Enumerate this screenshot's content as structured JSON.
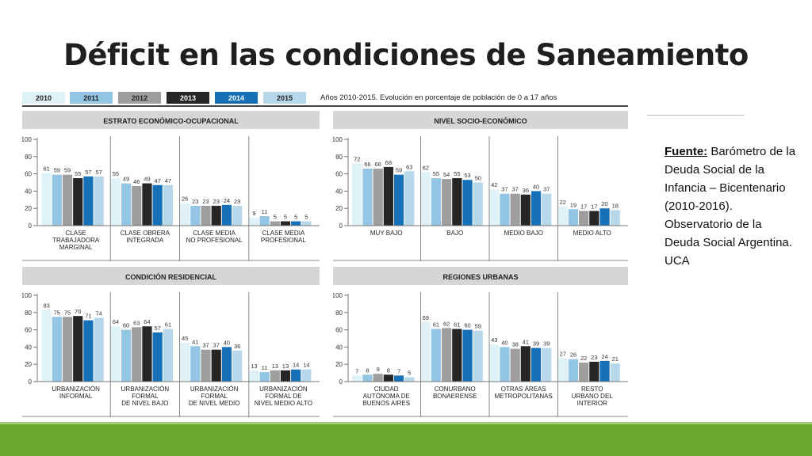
{
  "slide": {
    "title": "Déficit en las condiciones de Saneamiento",
    "source_label": "Fuente:",
    "source_text": " Barómetro de la Deuda Social de la Infancia – Bicentenario (2010-2016). Observatorio de la Deuda Social Argentina. UCA"
  },
  "legend": {
    "years": [
      "2010",
      "2011",
      "2012",
      "2013",
      "2014",
      "2015"
    ],
    "colors": [
      "#dff2f7",
      "#93c6e4",
      "#9e9e9e",
      "#262626",
      "#1670b8",
      "#b7d8ea"
    ],
    "text_colors": [
      "#222222",
      "#222222",
      "#222222",
      "#ffffff",
      "#ffffff",
      "#222222"
    ],
    "description": "Años 2010-2015. Evolución en porcentaje de población de 0 a 17 años"
  },
  "chart_data": [
    {
      "type": "bar",
      "title": "ESTRATO ECONÓMICO-OCUPACIONAL",
      "ylim": [
        0,
        100
      ],
      "yticks": [
        "0",
        "20",
        "40",
        "60",
        "80",
        "100"
      ],
      "categories": [
        [
          "CLASE",
          "TRABAJADORA",
          "MARGINAL"
        ],
        [
          "CLASE OBRERA",
          "INTEGRADA"
        ],
        [
          "CLASE MEDIA",
          "NO PROFESIONAL"
        ],
        [
          "CLASE MEDIA",
          "PROFESIONAL"
        ]
      ],
      "series": [
        {
          "name": "2010",
          "values": [
            61,
            55,
            26,
            9
          ]
        },
        {
          "name": "2011",
          "values": [
            59,
            49,
            23,
            11
          ]
        },
        {
          "name": "2012",
          "values": [
            59,
            46,
            23,
            5
          ]
        },
        {
          "name": "2013",
          "values": [
            55,
            49,
            23,
            5
          ]
        },
        {
          "name": "2014",
          "values": [
            57,
            47,
            24,
            5
          ]
        },
        {
          "name": "2015",
          "values": [
            57,
            47,
            23,
            5
          ]
        }
      ]
    },
    {
      "type": "bar",
      "title": "NIVEL SOCIO-ECONÓMICO",
      "ylim": [
        0,
        100
      ],
      "yticks": [
        "0",
        "20",
        "40",
        "60",
        "80",
        "100"
      ],
      "categories": [
        [
          "MUY BAJO"
        ],
        [
          "BAJO"
        ],
        [
          "MEDIO BAJO"
        ],
        [
          "MEDIO ALTO"
        ]
      ],
      "series": [
        {
          "name": "2010",
          "values": [
            72,
            62,
            42,
            22
          ]
        },
        {
          "name": "2011",
          "values": [
            66,
            55,
            37,
            19
          ]
        },
        {
          "name": "2012",
          "values": [
            66,
            54,
            37,
            17
          ]
        },
        {
          "name": "2013",
          "values": [
            68,
            55,
            36,
            17
          ]
        },
        {
          "name": "2014",
          "values": [
            59,
            53,
            40,
            20
          ]
        },
        {
          "name": "2015",
          "values": [
            63,
            50,
            37,
            18
          ]
        }
      ]
    },
    {
      "type": "bar",
      "title": "CONDICIÓN RESIDENCIAL",
      "ylim": [
        0,
        100
      ],
      "yticks": [
        "0",
        "20",
        "40",
        "60",
        "80",
        "100"
      ],
      "categories": [
        [
          "URBANIZACIÓN",
          "INFORMAL"
        ],
        [
          "URBANIZACIÓN",
          "FORMAL",
          "DE NIVEL BAJO"
        ],
        [
          "URBANIZACIÓN",
          "FORMAL",
          "DE NIVEL MEDIO"
        ],
        [
          "URBANIZACIÓN",
          "FORMAL DE",
          "NIVEL MEDIO ALTO"
        ]
      ],
      "series": [
        {
          "name": "2010",
          "values": [
            83,
            64,
            45,
            13
          ]
        },
        {
          "name": "2011",
          "values": [
            75,
            60,
            41,
            11
          ]
        },
        {
          "name": "2012",
          "values": [
            75,
            63,
            37,
            13
          ]
        },
        {
          "name": "2013",
          "values": [
            76,
            64,
            37,
            13
          ]
        },
        {
          "name": "2014",
          "values": [
            71,
            57,
            40,
            14
          ]
        },
        {
          "name": "2015",
          "values": [
            74,
            61,
            36,
            14
          ]
        }
      ]
    },
    {
      "type": "bar",
      "title": "REGIONES URBANAS",
      "ylim": [
        0,
        100
      ],
      "yticks": [
        "0",
        "20",
        "40",
        "60",
        "80",
        "100"
      ],
      "categories": [
        [
          "CIUDAD",
          "AUTÓNOMA DE",
          "BUENOS AIRES"
        ],
        [
          "CONURBANO",
          "BONAERENSE"
        ],
        [
          "OTRAS ÁREAS",
          "METROPOLITANAS"
        ],
        [
          "RESTO",
          "URBANO DEL",
          "INTERIOR"
        ]
      ],
      "series": [
        {
          "name": "2010",
          "values": [
            7,
            69,
            43,
            27
          ]
        },
        {
          "name": "2011",
          "values": [
            8,
            61,
            40,
            26
          ]
        },
        {
          "name": "2012",
          "values": [
            9,
            62,
            38,
            22
          ]
        },
        {
          "name": "2013",
          "values": [
            8,
            61,
            41,
            23
          ]
        },
        {
          "name": "2014",
          "values": [
            7,
            60,
            39,
            24
          ]
        },
        {
          "name": "2015",
          "values": [
            5,
            59,
            39,
            21
          ]
        }
      ]
    }
  ]
}
